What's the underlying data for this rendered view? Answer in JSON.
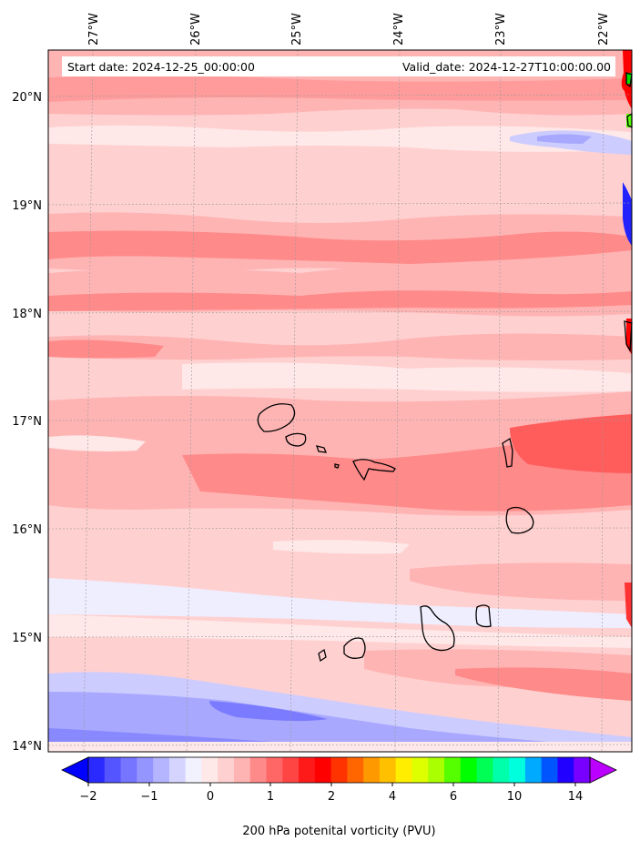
{
  "header": {
    "start_label": "Start date: 2024-12-25_00:00:00",
    "valid_label": "Valid_date: 2024-12-27T10:00:00.00"
  },
  "map": {
    "lon_ticks": [
      "27°W",
      "26°W",
      "25°W",
      "24°W",
      "23°W",
      "22°W"
    ],
    "lat_ticks": [
      "20°N",
      "19°N",
      "18°N",
      "17°N",
      "16°N",
      "15°N",
      "14°N"
    ],
    "colors": {
      "background": "#ffd0d0",
      "light_pink": "#ffe8e8",
      "medium_pink": "#ffb4b4",
      "red": "#ff8a8a",
      "dark_red": "#ff5c5c",
      "pale_blue": "#eeeeff",
      "light_blue": "#ccccff",
      "blue": "#a8a8ff",
      "dark_blue": "#7b7bff",
      "coast": "#000000"
    }
  },
  "colorbar": {
    "label": "200 hPa potenital vorticity (PVU)",
    "ticks": [
      "−2",
      "−1",
      "0",
      "1",
      "2",
      "4",
      "6",
      "10",
      "14"
    ],
    "colors": [
      "#0000ff",
      "#2a2aff",
      "#5555ff",
      "#7575ff",
      "#9595ff",
      "#b4b4ff",
      "#d4d4ff",
      "#f2f2ff",
      "#ffe8e8",
      "#ffd0d0",
      "#ffb4b4",
      "#ff8a8a",
      "#ff6666",
      "#ff4444",
      "#ff1a1a",
      "#ff0000",
      "#ff3300",
      "#ff6600",
      "#ff9900",
      "#ffc000",
      "#ffee00",
      "#ddff00",
      "#aaff00",
      "#55ff00",
      "#00ff00",
      "#00ff55",
      "#00ffaa",
      "#00ffdd",
      "#00aaff",
      "#0055ff",
      "#2200ff",
      "#7700ff",
      "#bb00ff"
    ]
  }
}
